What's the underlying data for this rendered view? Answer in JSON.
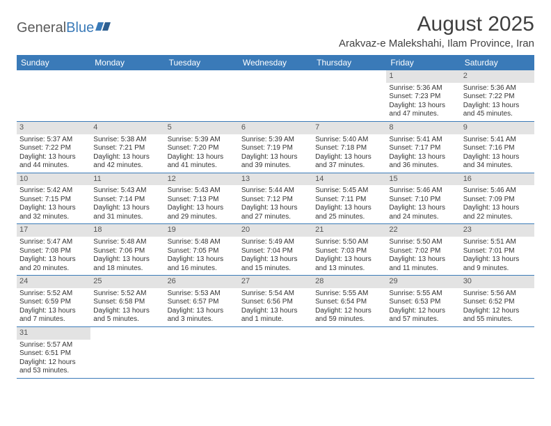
{
  "brand": {
    "part1": "General",
    "part2": "Blue"
  },
  "title": "August 2025",
  "location": "Arakvaz-e Malekshahi, Ilam Province, Iran",
  "colors": {
    "header_bg": "#3a7ab8",
    "header_text": "#ffffff",
    "daynum_bg": "#e3e3e3",
    "daynum_text": "#555555",
    "body_text": "#333333",
    "title_text": "#404040",
    "row_border": "#3a7ab8",
    "page_bg": "#ffffff"
  },
  "typography": {
    "title_fontsize": 30,
    "location_fontsize": 15,
    "dayhead_fontsize": 12,
    "cell_fontsize": 10
  },
  "day_headers": [
    "Sunday",
    "Monday",
    "Tuesday",
    "Wednesday",
    "Thursday",
    "Friday",
    "Saturday"
  ],
  "weeks": [
    [
      {
        "n": "",
        "sr": "",
        "ss": "",
        "dl1": "",
        "dl2": ""
      },
      {
        "n": "",
        "sr": "",
        "ss": "",
        "dl1": "",
        "dl2": ""
      },
      {
        "n": "",
        "sr": "",
        "ss": "",
        "dl1": "",
        "dl2": ""
      },
      {
        "n": "",
        "sr": "",
        "ss": "",
        "dl1": "",
        "dl2": ""
      },
      {
        "n": "",
        "sr": "",
        "ss": "",
        "dl1": "",
        "dl2": ""
      },
      {
        "n": "1",
        "sr": "Sunrise: 5:36 AM",
        "ss": "Sunset: 7:23 PM",
        "dl1": "Daylight: 13 hours",
        "dl2": "and 47 minutes."
      },
      {
        "n": "2",
        "sr": "Sunrise: 5:36 AM",
        "ss": "Sunset: 7:22 PM",
        "dl1": "Daylight: 13 hours",
        "dl2": "and 45 minutes."
      }
    ],
    [
      {
        "n": "3",
        "sr": "Sunrise: 5:37 AM",
        "ss": "Sunset: 7:22 PM",
        "dl1": "Daylight: 13 hours",
        "dl2": "and 44 minutes."
      },
      {
        "n": "4",
        "sr": "Sunrise: 5:38 AM",
        "ss": "Sunset: 7:21 PM",
        "dl1": "Daylight: 13 hours",
        "dl2": "and 42 minutes."
      },
      {
        "n": "5",
        "sr": "Sunrise: 5:39 AM",
        "ss": "Sunset: 7:20 PM",
        "dl1": "Daylight: 13 hours",
        "dl2": "and 41 minutes."
      },
      {
        "n": "6",
        "sr": "Sunrise: 5:39 AM",
        "ss": "Sunset: 7:19 PM",
        "dl1": "Daylight: 13 hours",
        "dl2": "and 39 minutes."
      },
      {
        "n": "7",
        "sr": "Sunrise: 5:40 AM",
        "ss": "Sunset: 7:18 PM",
        "dl1": "Daylight: 13 hours",
        "dl2": "and 37 minutes."
      },
      {
        "n": "8",
        "sr": "Sunrise: 5:41 AM",
        "ss": "Sunset: 7:17 PM",
        "dl1": "Daylight: 13 hours",
        "dl2": "and 36 minutes."
      },
      {
        "n": "9",
        "sr": "Sunrise: 5:41 AM",
        "ss": "Sunset: 7:16 PM",
        "dl1": "Daylight: 13 hours",
        "dl2": "and 34 minutes."
      }
    ],
    [
      {
        "n": "10",
        "sr": "Sunrise: 5:42 AM",
        "ss": "Sunset: 7:15 PM",
        "dl1": "Daylight: 13 hours",
        "dl2": "and 32 minutes."
      },
      {
        "n": "11",
        "sr": "Sunrise: 5:43 AM",
        "ss": "Sunset: 7:14 PM",
        "dl1": "Daylight: 13 hours",
        "dl2": "and 31 minutes."
      },
      {
        "n": "12",
        "sr": "Sunrise: 5:43 AM",
        "ss": "Sunset: 7:13 PM",
        "dl1": "Daylight: 13 hours",
        "dl2": "and 29 minutes."
      },
      {
        "n": "13",
        "sr": "Sunrise: 5:44 AM",
        "ss": "Sunset: 7:12 PM",
        "dl1": "Daylight: 13 hours",
        "dl2": "and 27 minutes."
      },
      {
        "n": "14",
        "sr": "Sunrise: 5:45 AM",
        "ss": "Sunset: 7:11 PM",
        "dl1": "Daylight: 13 hours",
        "dl2": "and 25 minutes."
      },
      {
        "n": "15",
        "sr": "Sunrise: 5:46 AM",
        "ss": "Sunset: 7:10 PM",
        "dl1": "Daylight: 13 hours",
        "dl2": "and 24 minutes."
      },
      {
        "n": "16",
        "sr": "Sunrise: 5:46 AM",
        "ss": "Sunset: 7:09 PM",
        "dl1": "Daylight: 13 hours",
        "dl2": "and 22 minutes."
      }
    ],
    [
      {
        "n": "17",
        "sr": "Sunrise: 5:47 AM",
        "ss": "Sunset: 7:08 PM",
        "dl1": "Daylight: 13 hours",
        "dl2": "and 20 minutes."
      },
      {
        "n": "18",
        "sr": "Sunrise: 5:48 AM",
        "ss": "Sunset: 7:06 PM",
        "dl1": "Daylight: 13 hours",
        "dl2": "and 18 minutes."
      },
      {
        "n": "19",
        "sr": "Sunrise: 5:48 AM",
        "ss": "Sunset: 7:05 PM",
        "dl1": "Daylight: 13 hours",
        "dl2": "and 16 minutes."
      },
      {
        "n": "20",
        "sr": "Sunrise: 5:49 AM",
        "ss": "Sunset: 7:04 PM",
        "dl1": "Daylight: 13 hours",
        "dl2": "and 15 minutes."
      },
      {
        "n": "21",
        "sr": "Sunrise: 5:50 AM",
        "ss": "Sunset: 7:03 PM",
        "dl1": "Daylight: 13 hours",
        "dl2": "and 13 minutes."
      },
      {
        "n": "22",
        "sr": "Sunrise: 5:50 AM",
        "ss": "Sunset: 7:02 PM",
        "dl1": "Daylight: 13 hours",
        "dl2": "and 11 minutes."
      },
      {
        "n": "23",
        "sr": "Sunrise: 5:51 AM",
        "ss": "Sunset: 7:01 PM",
        "dl1": "Daylight: 13 hours",
        "dl2": "and 9 minutes."
      }
    ],
    [
      {
        "n": "24",
        "sr": "Sunrise: 5:52 AM",
        "ss": "Sunset: 6:59 PM",
        "dl1": "Daylight: 13 hours",
        "dl2": "and 7 minutes."
      },
      {
        "n": "25",
        "sr": "Sunrise: 5:52 AM",
        "ss": "Sunset: 6:58 PM",
        "dl1": "Daylight: 13 hours",
        "dl2": "and 5 minutes."
      },
      {
        "n": "26",
        "sr": "Sunrise: 5:53 AM",
        "ss": "Sunset: 6:57 PM",
        "dl1": "Daylight: 13 hours",
        "dl2": "and 3 minutes."
      },
      {
        "n": "27",
        "sr": "Sunrise: 5:54 AM",
        "ss": "Sunset: 6:56 PM",
        "dl1": "Daylight: 13 hours",
        "dl2": "and 1 minute."
      },
      {
        "n": "28",
        "sr": "Sunrise: 5:55 AM",
        "ss": "Sunset: 6:54 PM",
        "dl1": "Daylight: 12 hours",
        "dl2": "and 59 minutes."
      },
      {
        "n": "29",
        "sr": "Sunrise: 5:55 AM",
        "ss": "Sunset: 6:53 PM",
        "dl1": "Daylight: 12 hours",
        "dl2": "and 57 minutes."
      },
      {
        "n": "30",
        "sr": "Sunrise: 5:56 AM",
        "ss": "Sunset: 6:52 PM",
        "dl1": "Daylight: 12 hours",
        "dl2": "and 55 minutes."
      }
    ],
    [
      {
        "n": "31",
        "sr": "Sunrise: 5:57 AM",
        "ss": "Sunset: 6:51 PM",
        "dl1": "Daylight: 12 hours",
        "dl2": "and 53 minutes."
      },
      {
        "n": "",
        "sr": "",
        "ss": "",
        "dl1": "",
        "dl2": ""
      },
      {
        "n": "",
        "sr": "",
        "ss": "",
        "dl1": "",
        "dl2": ""
      },
      {
        "n": "",
        "sr": "",
        "ss": "",
        "dl1": "",
        "dl2": ""
      },
      {
        "n": "",
        "sr": "",
        "ss": "",
        "dl1": "",
        "dl2": ""
      },
      {
        "n": "",
        "sr": "",
        "ss": "",
        "dl1": "",
        "dl2": ""
      },
      {
        "n": "",
        "sr": "",
        "ss": "",
        "dl1": "",
        "dl2": ""
      }
    ]
  ]
}
